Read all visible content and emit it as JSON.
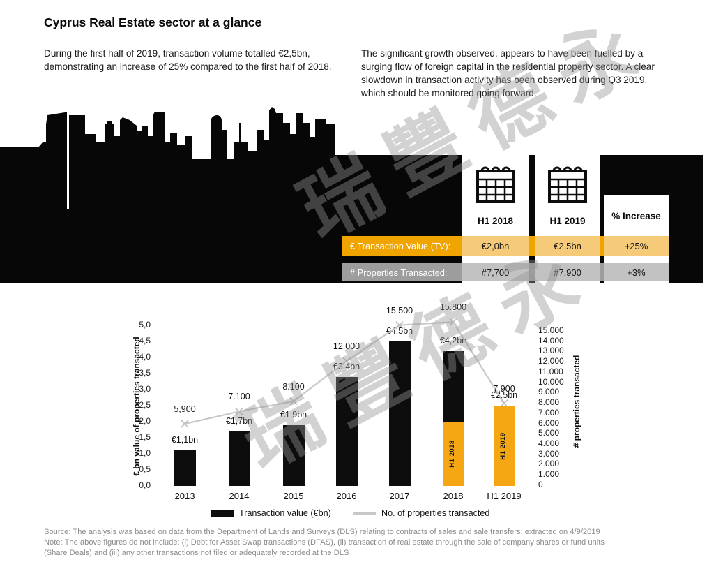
{
  "page": {
    "title": "Cyprus Real Estate sector at a glance"
  },
  "intro": {
    "left": "During the first half of 2019, transaction volume totalled €2,5bn, demonstrating an increase of 25% compared to the first half of 2018.",
    "right": "The significant growth observed, appears to have been fuelled by a surging flow of foreign capital in the residential property sector. A clear slowdown in transaction activity has been observed during Q3 2019, which should be monitored going forward."
  },
  "watermark": {
    "text": "瑞豐德永"
  },
  "comparison_table": {
    "row_labels": {
      "tv": "€ Transaction Value (TV):",
      "props": "# Properties Transacted:"
    },
    "columns": [
      {
        "period": "H1 2018",
        "tv": "€2,0bn",
        "props": "#7,700"
      },
      {
        "period": "H1 2019",
        "tv": "€2,5bn",
        "props": "#7,900"
      },
      {
        "period": "% Increase",
        "tv": "+25%",
        "props": "+3%"
      }
    ]
  },
  "chart_data": {
    "type": "bar+line",
    "categories": [
      "2013",
      "2014",
      "2015",
      "2016",
      "2017",
      "2018",
      "H1 2019"
    ],
    "series": [
      {
        "name": "Transaction value (€bn)",
        "type": "bar",
        "values": [
          1.1,
          1.7,
          1.9,
          3.4,
          4.5,
          4.2,
          2.5
        ],
        "data_labels": [
          "€1,1bn",
          "€1,7bn",
          "€1,9bn",
          "€3,4bn",
          "€4,5bn",
          "€4,2bn",
          "€2,5bn"
        ],
        "segments": [
          null,
          null,
          null,
          null,
          null,
          {
            "amber_to": 2.0,
            "label": "H1 2018"
          },
          {
            "amber_to": 2.5,
            "label": "H1 2019"
          }
        ]
      },
      {
        "name": "No. of properties transacted",
        "type": "line",
        "values": [
          5900,
          7100,
          8100,
          12000,
          15500,
          15800,
          7900
        ],
        "data_labels": [
          "5,900",
          "7.100",
          "8.100",
          "12.000",
          "15,500",
          "15.800",
          "7.900"
        ]
      }
    ],
    "left_axis": {
      "title": "€ bn value of properties transacted",
      "ticks": [
        "5,0",
        "4,5",
        "4,0",
        "3,5",
        "3,0",
        "2,5",
        "2,0",
        "1,5",
        "1,0",
        "0,5",
        "0,0"
      ],
      "min": 0,
      "max": 5
    },
    "right_axis": {
      "title": "# properties transacted",
      "ticks": [
        "15.000",
        "14.000",
        "13.000",
        "12.000",
        "11.000",
        "10.000",
        "9.000",
        "8.000",
        "7.000",
        "6.000",
        "5.000",
        "4.000",
        "3.000",
        "2.000",
        "1.000",
        "0"
      ],
      "min": 0,
      "max": 15000
    },
    "legend": {
      "bar": "Transaction value (€bn)",
      "line": "No. of properties transacted"
    },
    "grid": false,
    "colors": {
      "bar": "#0d0d0d",
      "highlight": "#F4A712",
      "line": "#c8c8c8"
    }
  },
  "footer": {
    "line1": "Source: The analysis was based on data from the Department of Lands and Surveys (DLS) relating to contracts of sales and sale transfers, extracted on 4/9/2019",
    "line2": "Note: The above figures do not include: (i) Debt for Asset Swap transactions (DFAS), (ii) transaction of real estate through the sale of company shares or fund units",
    "line3": "(Share Deals) and (iii) any other transactions not filed or adequately recorded at the DLS"
  },
  "colors": {
    "accent_orange": "#F0A400",
    "accent_orange_light": "#F5CB79",
    "gray_row": "#9D9D9D",
    "gray_row_light": "#C2C2C2",
    "black": "#0d0d0d"
  }
}
